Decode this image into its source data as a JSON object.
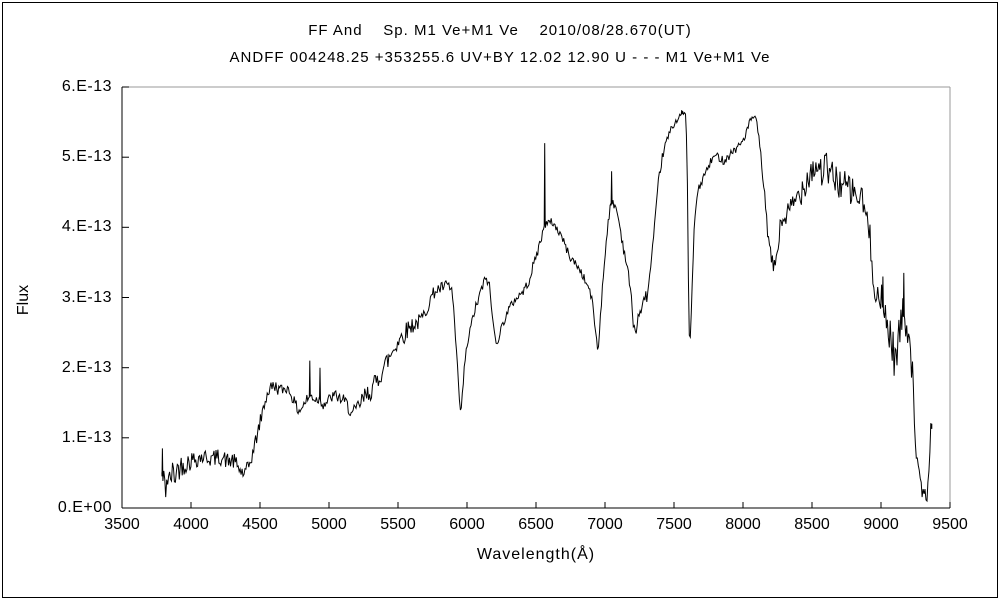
{
  "title": {
    "line1": "FF And    Sp. M1 Ve+M1 Ve    2010/08/28.670(UT)",
    "line2": "ANDFF 004248.25 +353255.6 UV+BY 12.02 12.90 U - - - M1 Ve+M1 Ve"
  },
  "colors": {
    "background": "#ffffff",
    "line_color": "#000000",
    "axis_color": "#000000",
    "border_gray": "#9a9a9a",
    "text_color": "#000000"
  },
  "chart_data": {
    "type": "line",
    "title": "FF And spectrum 2010/08/28.670(UT)",
    "xlabel": "Wavelength(Å)",
    "ylabel": "Flux",
    "xlim": [
      3500,
      9500
    ],
    "ylim_label": [
      "0.E+00",
      "6.E-13"
    ],
    "y_max_e13": 6,
    "grid": false,
    "legend": "none",
    "x_ticks": [
      {
        "v": 3500,
        "label": "3500"
      },
      {
        "v": 4000,
        "label": "4000"
      },
      {
        "v": 4500,
        "label": "4500"
      },
      {
        "v": 5000,
        "label": "5000"
      },
      {
        "v": 5500,
        "label": "5500"
      },
      {
        "v": 6000,
        "label": "6000"
      },
      {
        "v": 6500,
        "label": "6500"
      },
      {
        "v": 7000,
        "label": "7000"
      },
      {
        "v": 7500,
        "label": "7500"
      },
      {
        "v": 8000,
        "label": "8000"
      },
      {
        "v": 8500,
        "label": "8500"
      },
      {
        "v": 9000,
        "label": "9000"
      },
      {
        "v": 9500,
        "label": "9500"
      }
    ],
    "y_ticks": [
      {
        "v": 0,
        "label": "0.E+00"
      },
      {
        "v": 1,
        "label": "1.E-13"
      },
      {
        "v": 2,
        "label": "2.E-13"
      },
      {
        "v": 3,
        "label": "3.E-13"
      },
      {
        "v": 4,
        "label": "4.E-13"
      },
      {
        "v": 5,
        "label": "5.E-13"
      },
      {
        "v": 6,
        "label": "6.E-13"
      }
    ],
    "wavelength_range": [
      3790,
      9368
    ],
    "flux_unit": "1e-13 erg/s/cm2/A (labels as shown)",
    "envelope_points_e13": [
      [
        3790,
        0.45
      ],
      [
        3800,
        0.35
      ],
      [
        3815,
        0.3
      ],
      [
        3830,
        0.45
      ],
      [
        3845,
        0.35
      ],
      [
        3860,
        0.5
      ],
      [
        3880,
        0.45
      ],
      [
        3900,
        0.55
      ],
      [
        3925,
        0.6
      ],
      [
        3950,
        0.62
      ],
      [
        3975,
        0.65
      ],
      [
        4000,
        0.68
      ],
      [
        4030,
        0.7
      ],
      [
        4060,
        0.72
      ],
      [
        4090,
        0.73
      ],
      [
        4120,
        0.72
      ],
      [
        4150,
        0.7
      ],
      [
        4180,
        0.72
      ],
      [
        4210,
        0.73
      ],
      [
        4240,
        0.7
      ],
      [
        4270,
        0.66
      ],
      [
        4300,
        0.68
      ],
      [
        4330,
        0.62
      ],
      [
        4360,
        0.52
      ],
      [
        4390,
        0.48
      ],
      [
        4420,
        0.6
      ],
      [
        4450,
        0.8
      ],
      [
        4480,
        1.05
      ],
      [
        4510,
        1.3
      ],
      [
        4540,
        1.55
      ],
      [
        4570,
        1.7
      ],
      [
        4600,
        1.75
      ],
      [
        4630,
        1.7
      ],
      [
        4660,
        1.68
      ],
      [
        4690,
        1.72
      ],
      [
        4720,
        1.65
      ],
      [
        4750,
        1.5
      ],
      [
        4780,
        1.38
      ],
      [
        4810,
        1.45
      ],
      [
        4840,
        1.55
      ],
      [
        4870,
        1.6
      ],
      [
        4900,
        1.55
      ],
      [
        4930,
        1.55
      ],
      [
        4960,
        1.48
      ],
      [
        4990,
        1.52
      ],
      [
        5020,
        1.58
      ],
      [
        5050,
        1.6
      ],
      [
        5080,
        1.56
      ],
      [
        5110,
        1.52
      ],
      [
        5140,
        1.45
      ],
      [
        5170,
        1.32
      ],
      [
        5200,
        1.4
      ],
      [
        5230,
        1.5
      ],
      [
        5260,
        1.58
      ],
      [
        5290,
        1.65
      ],
      [
        5320,
        1.72
      ],
      [
        5350,
        1.82
      ],
      [
        5380,
        1.95
      ],
      [
        5410,
        2.05
      ],
      [
        5440,
        2.15
      ],
      [
        5470,
        2.28
      ],
      [
        5500,
        2.38
      ],
      [
        5530,
        2.45
      ],
      [
        5560,
        2.52
      ],
      [
        5590,
        2.6
      ],
      [
        5620,
        2.62
      ],
      [
        5650,
        2.65
      ],
      [
        5680,
        2.72
      ],
      [
        5710,
        2.85
      ],
      [
        5740,
        3.0
      ],
      [
        5770,
        3.1
      ],
      [
        5800,
        3.12
      ],
      [
        5830,
        3.15
      ],
      [
        5860,
        3.18
      ],
      [
        5890,
        3.1
      ],
      [
        5905,
        2.8
      ],
      [
        5920,
        2.3
      ],
      [
        5940,
        1.7
      ],
      [
        5955,
        1.3
      ],
      [
        5970,
        1.7
      ],
      [
        5985,
        2.1
      ],
      [
        6000,
        2.3
      ],
      [
        6020,
        2.5
      ],
      [
        6050,
        2.78
      ],
      [
        6080,
        2.95
      ],
      [
        6110,
        3.15
      ],
      [
        6140,
        3.28
      ],
      [
        6160,
        3.2
      ],
      [
        6180,
        2.8
      ],
      [
        6200,
        2.45
      ],
      [
        6220,
        2.38
      ],
      [
        6240,
        2.5
      ],
      [
        6270,
        2.68
      ],
      [
        6300,
        2.82
      ],
      [
        6330,
        2.92
      ],
      [
        6360,
        3.0
      ],
      [
        6390,
        3.05
      ],
      [
        6420,
        3.12
      ],
      [
        6450,
        3.25
      ],
      [
        6480,
        3.45
      ],
      [
        6510,
        3.65
      ],
      [
        6540,
        3.85
      ],
      [
        6563,
        4.05
      ],
      [
        6590,
        4.05
      ],
      [
        6620,
        4.08
      ],
      [
        6650,
        3.98
      ],
      [
        6680,
        3.9
      ],
      [
        6710,
        3.75
      ],
      [
        6740,
        3.6
      ],
      [
        6770,
        3.52
      ],
      [
        6800,
        3.45
      ],
      [
        6830,
        3.35
      ],
      [
        6860,
        3.22
      ],
      [
        6890,
        3.1
      ],
      [
        6915,
        2.85
      ],
      [
        6935,
        2.45
      ],
      [
        6950,
        2.2
      ],
      [
        6965,
        2.7
      ],
      [
        6980,
        3.1
      ],
      [
        7000,
        3.6
      ],
      [
        7020,
        4.05
      ],
      [
        7040,
        4.3
      ],
      [
        7060,
        4.35
      ],
      [
        7080,
        4.28
      ],
      [
        7100,
        4.1
      ],
      [
        7130,
        3.75
      ],
      [
        7160,
        3.45
      ],
      [
        7185,
        3.1
      ],
      [
        7205,
        2.65
      ],
      [
        7225,
        2.48
      ],
      [
        7245,
        2.8
      ],
      [
        7265,
        2.75
      ],
      [
        7285,
        3.05
      ],
      [
        7305,
        3.0
      ],
      [
        7330,
        3.4
      ],
      [
        7360,
        4.0
      ],
      [
        7390,
        4.7
      ],
      [
        7420,
        5.05
      ],
      [
        7450,
        5.25
      ],
      [
        7480,
        5.4
      ],
      [
        7510,
        5.5
      ],
      [
        7540,
        5.6
      ],
      [
        7570,
        5.62
      ],
      [
        7588,
        5.58
      ],
      [
        7598,
        4.5
      ],
      [
        7606,
        2.8
      ],
      [
        7614,
        2.3
      ],
      [
        7622,
        2.55
      ],
      [
        7632,
        3.2
      ],
      [
        7645,
        3.9
      ],
      [
        7658,
        4.3
      ],
      [
        7672,
        4.5
      ],
      [
        7690,
        4.6
      ],
      [
        7710,
        4.7
      ],
      [
        7740,
        4.82
      ],
      [
        7770,
        4.95
      ],
      [
        7800,
        5.02
      ],
      [
        7830,
        5.0
      ],
      [
        7860,
        4.95
      ],
      [
        7890,
        5.0
      ],
      [
        7920,
        5.08
      ],
      [
        7950,
        5.12
      ],
      [
        7980,
        5.18
      ],
      [
        8010,
        5.28
      ],
      [
        8040,
        5.45
      ],
      [
        8070,
        5.58
      ],
      [
        8100,
        5.5
      ],
      [
        8125,
        5.1
      ],
      [
        8150,
        4.6
      ],
      [
        8175,
        4.0
      ],
      [
        8200,
        3.6
      ],
      [
        8225,
        3.4
      ],
      [
        8250,
        3.7
      ],
      [
        8275,
        4.05
      ],
      [
        8300,
        4.15
      ],
      [
        8330,
        4.2
      ],
      [
        8360,
        4.3
      ],
      [
        8390,
        4.42
      ],
      [
        8420,
        4.52
      ],
      [
        8450,
        4.65
      ],
      [
        8480,
        4.78
      ],
      [
        8510,
        4.85
      ],
      [
        8540,
        4.88
      ],
      [
        8570,
        4.8
      ],
      [
        8600,
        4.85
      ],
      [
        8630,
        4.75
      ],
      [
        8660,
        4.7
      ],
      [
        8690,
        4.65
      ],
      [
        8720,
        4.6
      ],
      [
        8750,
        4.58
      ],
      [
        8780,
        4.52
      ],
      [
        8810,
        4.48
      ],
      [
        8840,
        4.42
      ],
      [
        8870,
        4.35
      ],
      [
        8900,
        4.1
      ],
      [
        8925,
        3.7
      ],
      [
        8950,
        3.3
      ],
      [
        8975,
        3.0
      ],
      [
        9000,
        2.9
      ],
      [
        9025,
        2.8
      ],
      [
        9050,
        2.6
      ],
      [
        9075,
        2.4
      ],
      [
        9100,
        2.1
      ],
      [
        9125,
        2.4
      ],
      [
        9150,
        2.7
      ],
      [
        9175,
        2.75
      ],
      [
        9200,
        2.55
      ],
      [
        9215,
        2.3
      ],
      [
        9230,
        1.8
      ],
      [
        9245,
        1.2
      ],
      [
        9260,
        0.7
      ],
      [
        9275,
        0.4
      ],
      [
        9290,
        0.25
      ],
      [
        9310,
        0.2
      ],
      [
        9330,
        0.18
      ],
      [
        9345,
        0.35
      ],
      [
        9355,
        0.75
      ],
      [
        9362,
        1.35
      ],
      [
        9368,
        1.2
      ]
    ],
    "noise_amplitude_e13": [
      [
        3790,
        0.28
      ],
      [
        3850,
        0.22
      ],
      [
        3950,
        0.15
      ],
      [
        4100,
        0.12
      ],
      [
        4300,
        0.12
      ],
      [
        4500,
        0.1
      ],
      [
        4700,
        0.08
      ],
      [
        4900,
        0.08
      ],
      [
        5100,
        0.09
      ],
      [
        5250,
        0.14
      ],
      [
        5400,
        0.16
      ],
      [
        5550,
        0.14
      ],
      [
        5700,
        0.1
      ],
      [
        5850,
        0.08
      ],
      [
        5960,
        0.06
      ],
      [
        6100,
        0.08
      ],
      [
        6300,
        0.06
      ],
      [
        6500,
        0.07
      ],
      [
        6700,
        0.06
      ],
      [
        6900,
        0.06
      ],
      [
        7100,
        0.07
      ],
      [
        7300,
        0.08
      ],
      [
        7450,
        0.06
      ],
      [
        7550,
        0.04
      ],
      [
        7650,
        0.06
      ],
      [
        7800,
        0.06
      ],
      [
        8000,
        0.06
      ],
      [
        8100,
        0.05
      ],
      [
        8200,
        0.1
      ],
      [
        8300,
        0.18
      ],
      [
        8450,
        0.22
      ],
      [
        8600,
        0.25
      ],
      [
        8750,
        0.22
      ],
      [
        8900,
        0.25
      ],
      [
        9000,
        0.3
      ],
      [
        9100,
        0.3
      ],
      [
        9200,
        0.28
      ],
      [
        9270,
        0.18
      ],
      [
        9320,
        0.12
      ],
      [
        9368,
        0.1
      ]
    ],
    "narrow_spikes_e13": [
      [
        3793,
        0.85
      ],
      [
        4861,
        2.1
      ],
      [
        4935,
        2.0
      ],
      [
        6563,
        5.2
      ],
      [
        7048,
        4.8
      ],
      [
        7556,
        5.67
      ],
      [
        9014,
        3.3
      ],
      [
        9165,
        3.35
      ]
    ],
    "noise_seed": 42
  }
}
